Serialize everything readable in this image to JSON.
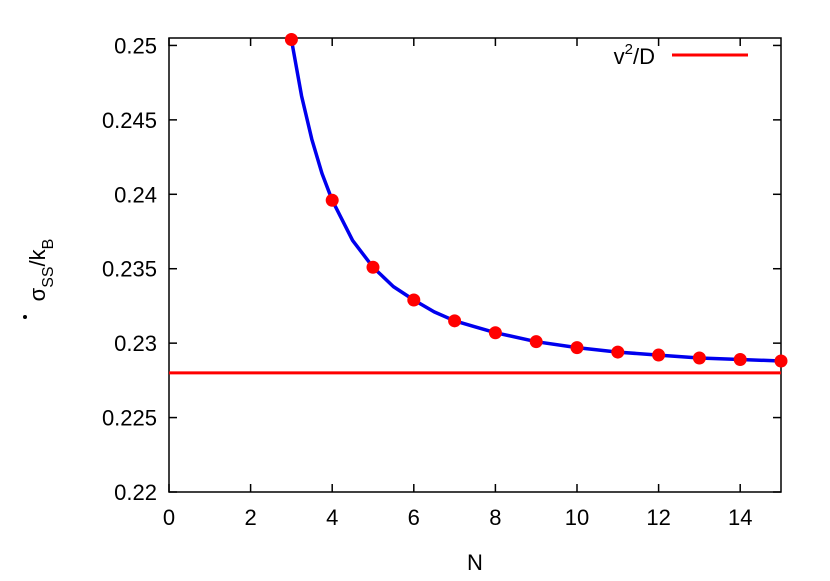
{
  "chart_data": {
    "type": "scatter",
    "xlabel": "N",
    "ylabel": {
      "symbol": "σ",
      "subscript": "SS",
      "slash": "/k",
      "sub2": "B"
    },
    "xlim": [
      0,
      15
    ],
    "ylim": [
      0.22,
      0.2505
    ],
    "xticks": [
      0,
      2,
      4,
      6,
      8,
      10,
      12,
      14
    ],
    "yticks": [
      0.22,
      0.225,
      0.23,
      0.235,
      0.24,
      0.245,
      0.25
    ],
    "grid": false,
    "legend_position": "top-right",
    "series": [
      {
        "kind": "points",
        "color": "#ff0000",
        "x": [
          3,
          4,
          5,
          6,
          7,
          8,
          9,
          10,
          11,
          12,
          13,
          14,
          15
        ],
        "y": [
          0.2504,
          0.2396,
          0.2351,
          0.2329,
          0.2315,
          0.2307,
          0.2301,
          0.2297,
          0.2294,
          0.2292,
          0.229,
          0.2289,
          0.2288
        ]
      },
      {
        "kind": "fit-curve",
        "color": "#0000ee",
        "x": [
          3,
          3.25,
          3.5,
          3.75,
          4,
          4.5,
          5,
          5.5,
          6,
          6.5,
          7,
          7.5,
          8,
          9,
          10,
          11,
          12,
          13,
          14,
          15
        ],
        "y": [
          0.2504,
          0.2466,
          0.2437,
          0.2414,
          0.2396,
          0.2369,
          0.2351,
          0.2338,
          0.2329,
          0.2321,
          0.2315,
          0.2311,
          0.2307,
          0.2301,
          0.2297,
          0.2294,
          0.2292,
          0.229,
          0.2289,
          0.2288
        ]
      },
      {
        "kind": "horizontal-line",
        "legend": {
          "base": "v",
          "sup": "2",
          "rest": "/D"
        },
        "color": "#ff0000",
        "y": 0.228
      }
    ]
  }
}
